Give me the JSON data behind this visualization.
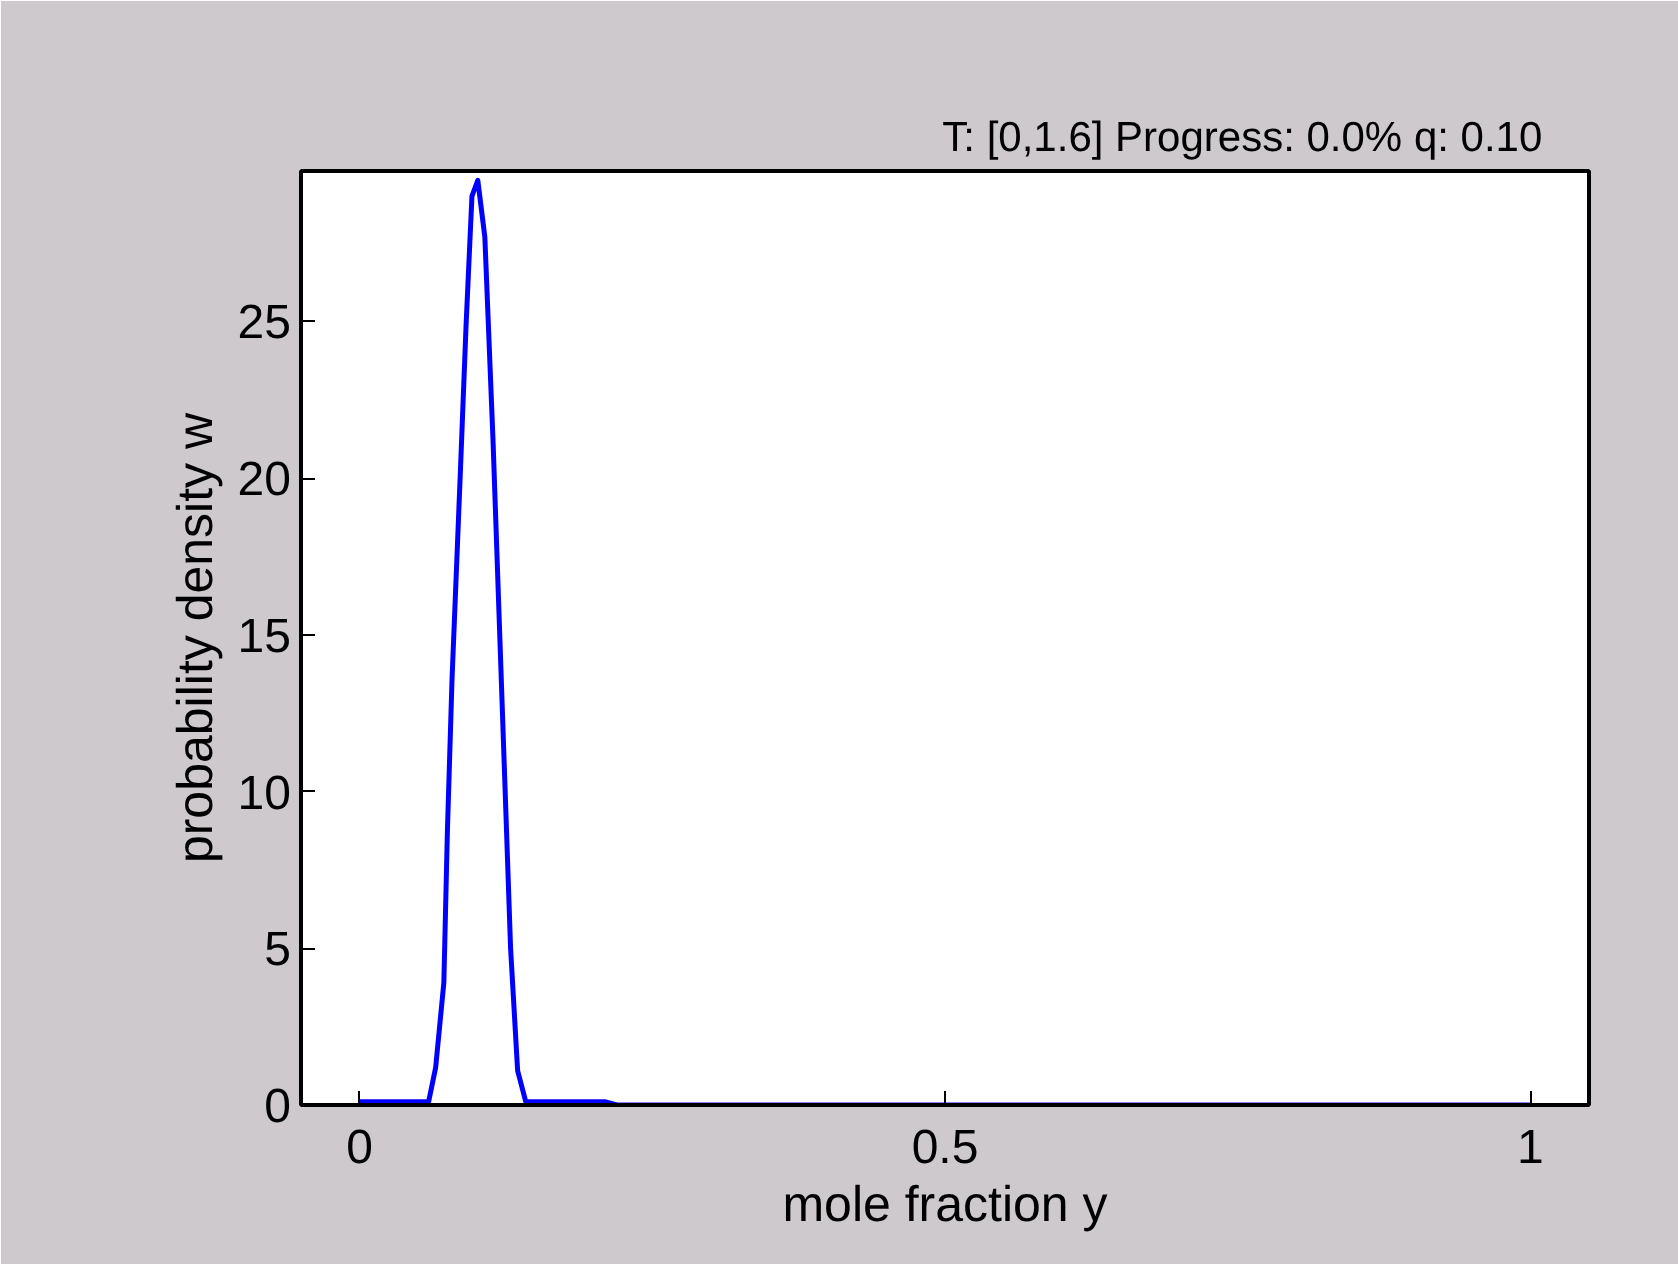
{
  "chart_data": {
    "type": "line",
    "title": "T: [0,1.6]   Progress: 0.0%   q: 0.10",
    "xlabel": "mole fraction y",
    "ylabel": "probability density w",
    "xlim": [
      -0.05,
      1.05
    ],
    "ylim": [
      0,
      29.8
    ],
    "xticks": [
      0,
      0.5,
      1
    ],
    "yticks": [
      0,
      5,
      10,
      15,
      20,
      25
    ],
    "grid": false,
    "marker": "none",
    "line_style": "solid",
    "series": [
      {
        "color": "#0000ff",
        "x": [
          0,
          0.04,
          0.059,
          0.065,
          0.072,
          0.075,
          0.079,
          0.086,
          0.091,
          0.096,
          0.101,
          0.107,
          0.114,
          0.119,
          0.124,
          0.129,
          0.135,
          0.142,
          0.16,
          0.21,
          0.22,
          0.5,
          1
        ],
        "values": [
          0.1,
          0.1,
          0.1,
          1.2,
          3.9,
          8.7,
          13.6,
          20.1,
          24.9,
          29,
          29.5,
          27.7,
          21.2,
          15.8,
          10.4,
          5,
          1.1,
          0.1,
          0.1,
          0.1,
          0,
          0,
          0
        ]
      }
    ]
  }
}
